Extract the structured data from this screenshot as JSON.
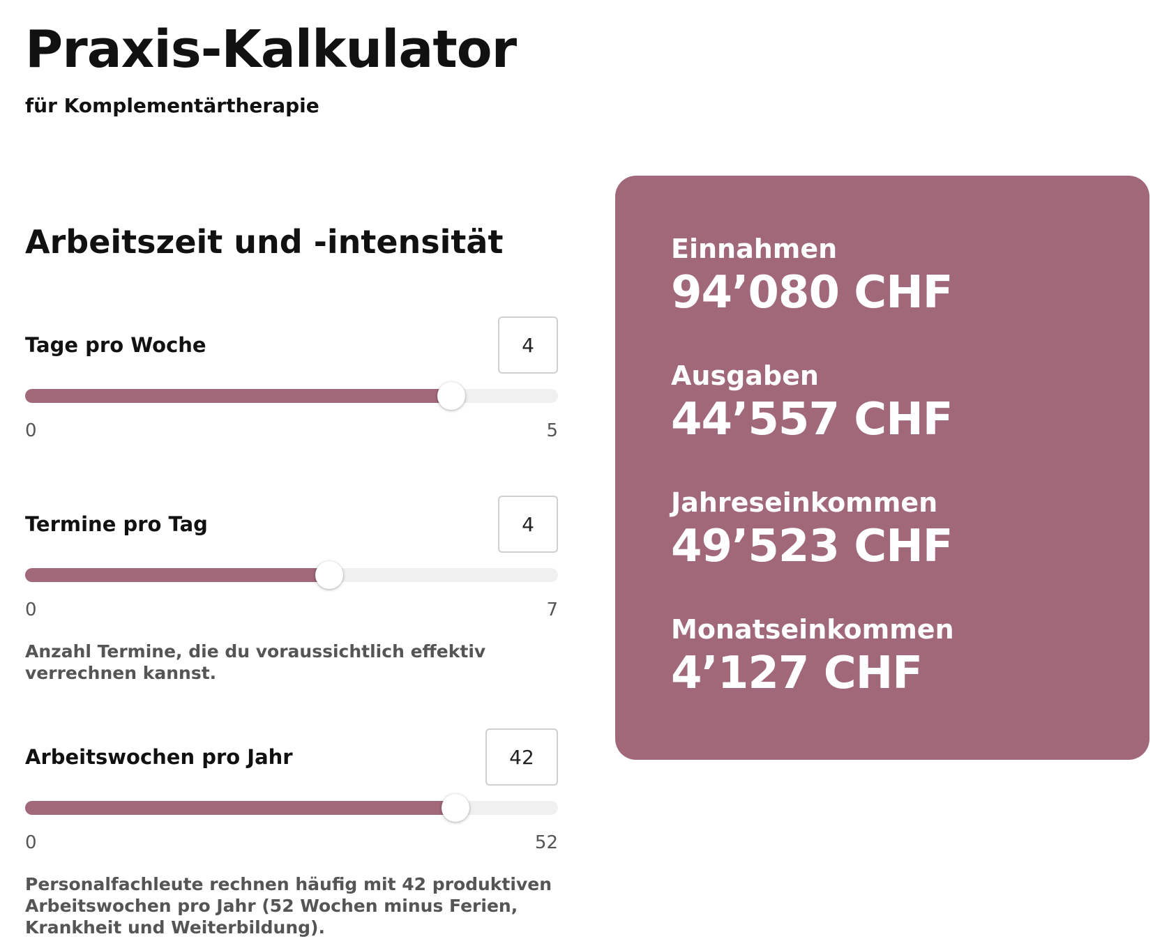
{
  "header": {
    "title": "Praxis-Kalkulator",
    "subtitle": "für Komplementärtherapie"
  },
  "section": {
    "title": "Arbeitszeit und -intensität"
  },
  "controls": [
    {
      "label": "Tage pro Woche",
      "value": "4",
      "min": "0",
      "max": "5",
      "fraction": 0.8,
      "hint": ""
    },
    {
      "label": "Termine pro Tag",
      "value": "4",
      "min": "0",
      "max": "7",
      "fraction": 0.571,
      "hint": "Anzahl Termine, die du voraussichtlich effektiv verrechnen kannst."
    },
    {
      "label": "Arbeitswochen pro Jahr",
      "value": "42",
      "min": "0",
      "max": "52",
      "fraction": 0.808,
      "hint": "Personalfachleute rechnen häufig mit 42 produktiven Arbeitswochen pro Jahr (52 Wochen minus Ferien, Krankheit und Weiterbildung)."
    }
  ],
  "results": [
    {
      "label": "Einnahmen",
      "value": "94’080 CHF"
    },
    {
      "label": "Ausgaben",
      "value": "44’557 CHF"
    },
    {
      "label": "Jahreseinkommen",
      "value": "49’523 CHF"
    },
    {
      "label": "Monatseinkommen",
      "value": "4’127 CHF"
    }
  ],
  "colors": {
    "accent": "#a06878",
    "track": "#f0f0f0",
    "text": "#111111",
    "muted": "#555555"
  }
}
